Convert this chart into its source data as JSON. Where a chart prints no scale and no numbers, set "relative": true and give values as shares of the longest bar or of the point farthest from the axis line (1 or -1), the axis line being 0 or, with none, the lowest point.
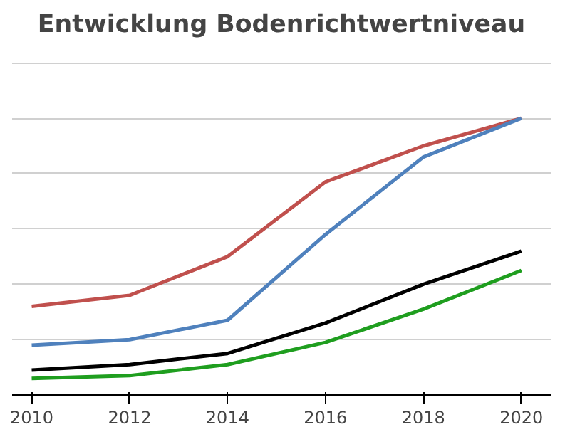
{
  "chart_data": {
    "type": "line",
    "title": "Entwicklung Bodenrichtwertniveau",
    "relative": true,
    "grid": "y",
    "x": [
      2010,
      2012,
      2014,
      2016,
      2018,
      2020
    ],
    "xlim": [
      2009.6,
      2020.6
    ],
    "xticks": [
      2010,
      2012,
      2014,
      2016,
      2018,
      2020
    ],
    "series": [
      {
        "color": "#c0504d",
        "values": [
          0.32,
          0.36,
          0.5,
          0.77,
          0.9,
          1.0
        ]
      },
      {
        "color": "#4f81bd",
        "values": [
          0.18,
          0.2,
          0.27,
          0.58,
          0.86,
          1.0
        ]
      },
      {
        "color": "#000000",
        "values": [
          0.09,
          0.11,
          0.15,
          0.26,
          0.4,
          0.52
        ]
      },
      {
        "color": "#1f9e1f",
        "values": [
          0.06,
          0.07,
          0.11,
          0.19,
          0.31,
          0.45
        ]
      }
    ]
  }
}
